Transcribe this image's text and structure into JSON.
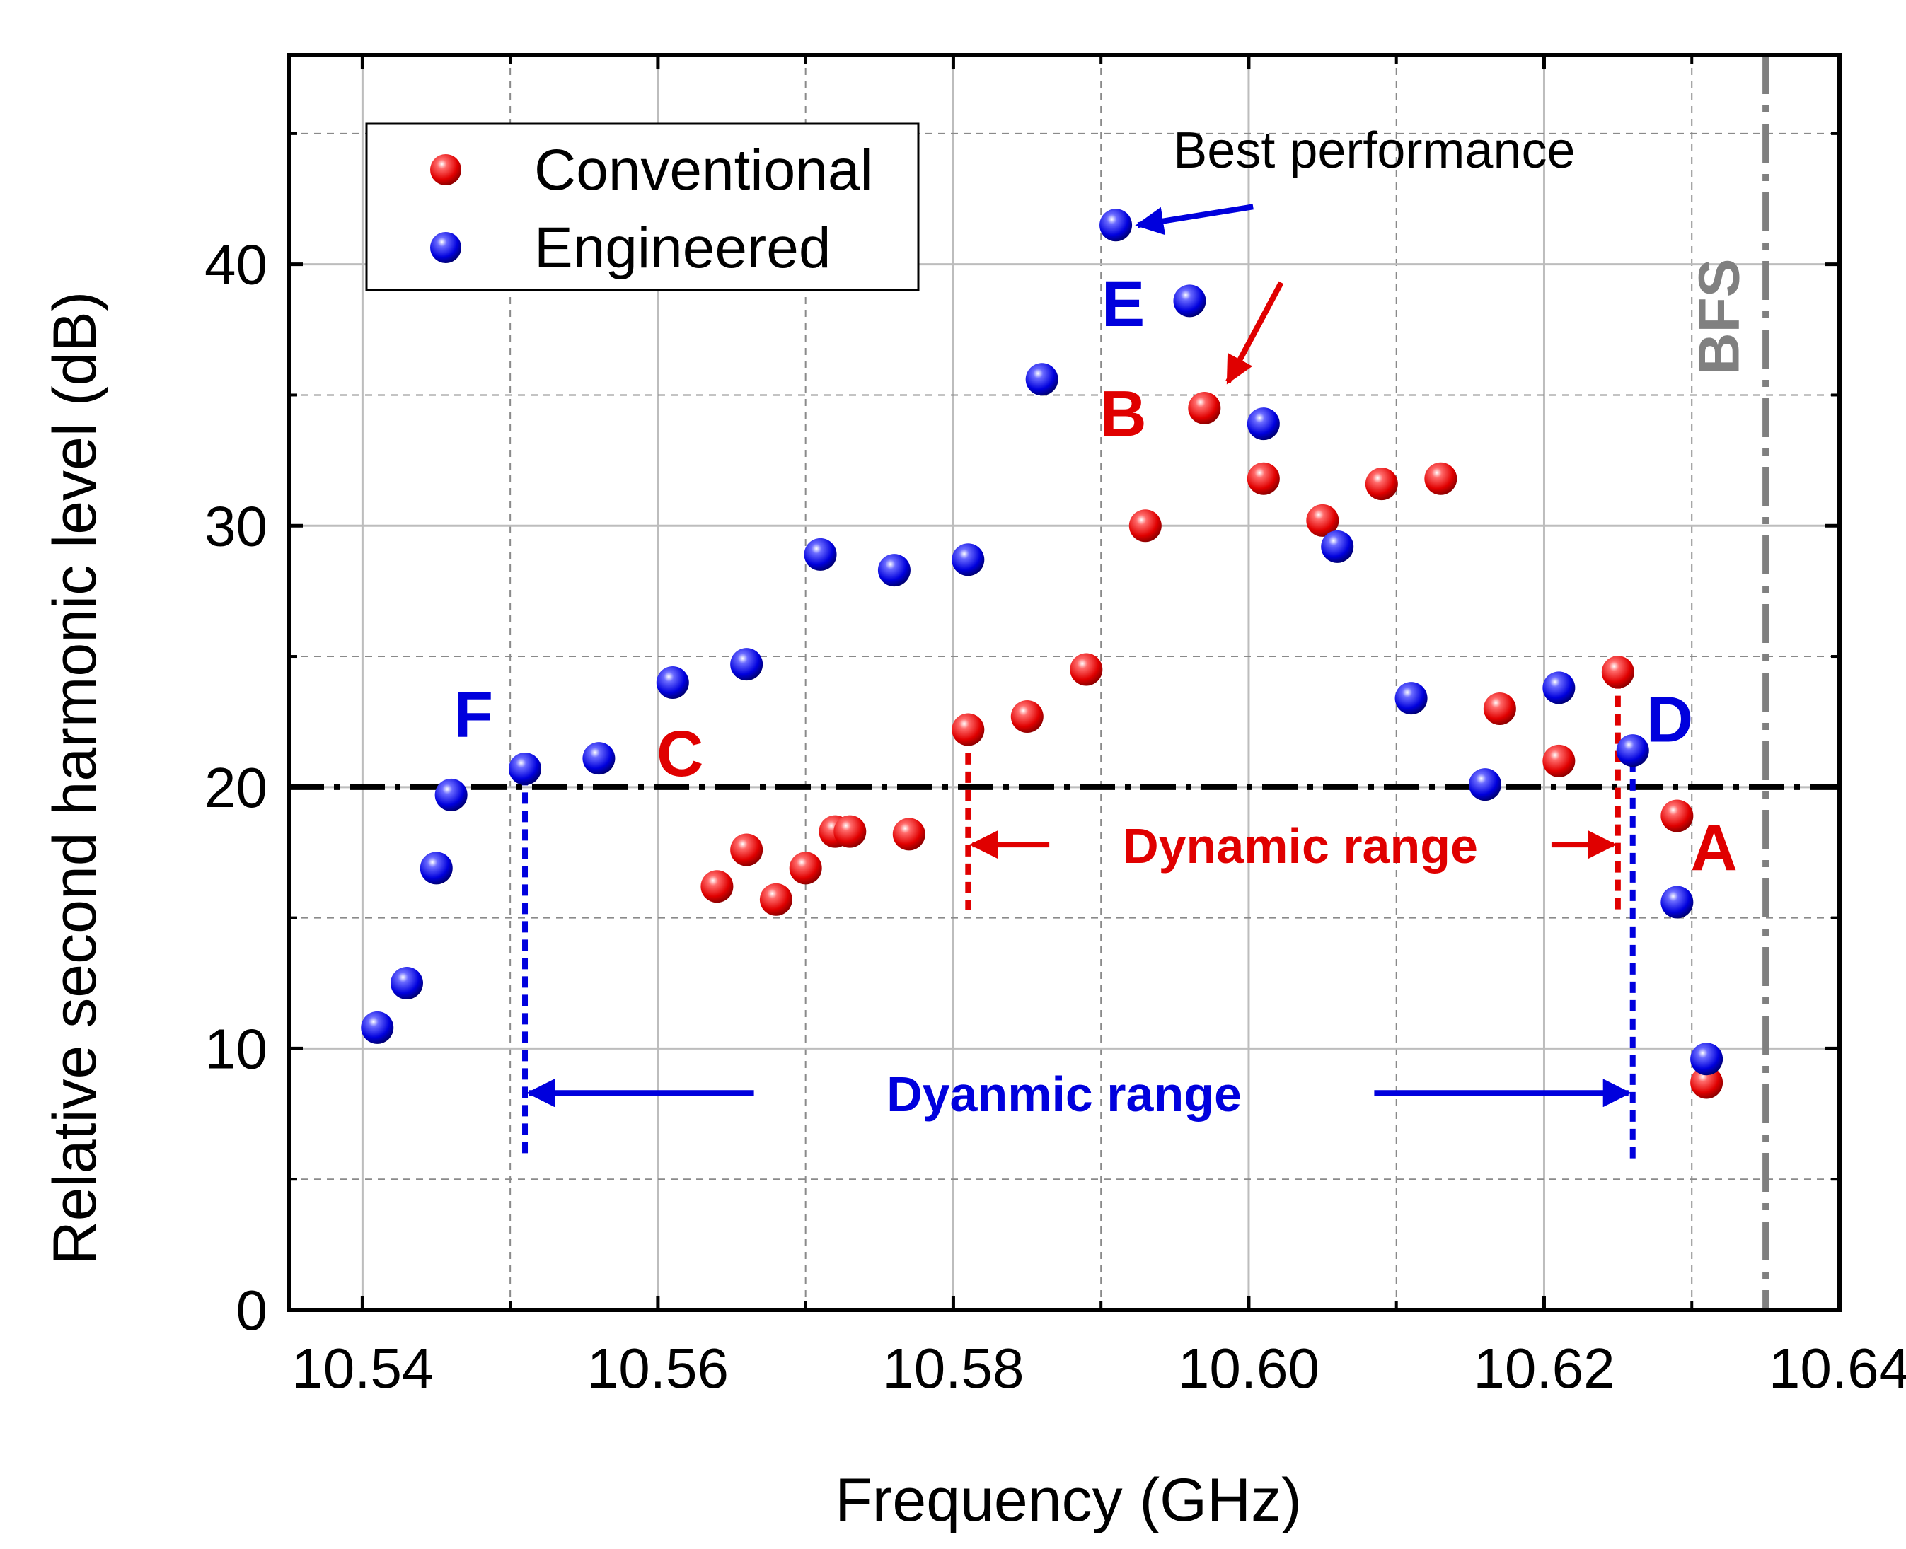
{
  "chart_data": {
    "type": "scatter",
    "xlabel": "Frequency (GHz)",
    "ylabel": "Relative second harmonic level (dB)",
    "xlim": [
      10.535,
      10.64
    ],
    "ylim": [
      0,
      48
    ],
    "x_ticks": [
      "10.54",
      "10.56",
      "10.58",
      "10.60",
      "10.62",
      "10.64"
    ],
    "y_ticks": [
      "0",
      "10",
      "20",
      "30",
      "40"
    ],
    "grid": true,
    "legend_position": "top-left",
    "colors": {
      "conventional": "#e00000",
      "engineered": "#0000dd",
      "threshold": "#000000",
      "bfs": "#808080"
    },
    "series": [
      {
        "name": "Conventional",
        "color": "#e00000",
        "points": [
          [
            10.564,
            16.2
          ],
          [
            10.566,
            17.6
          ],
          [
            10.568,
            15.7
          ],
          [
            10.57,
            16.9
          ],
          [
            10.572,
            18.3
          ],
          [
            10.573,
            18.3
          ],
          [
            10.577,
            18.2
          ],
          [
            10.581,
            22.2
          ],
          [
            10.585,
            22.7
          ],
          [
            10.589,
            24.5
          ],
          [
            10.593,
            30.0
          ],
          [
            10.597,
            34.5
          ],
          [
            10.601,
            31.8
          ],
          [
            10.605,
            30.2
          ],
          [
            10.609,
            31.6
          ],
          [
            10.613,
            31.8
          ],
          [
            10.617,
            23.0
          ],
          [
            10.621,
            21.0
          ],
          [
            10.625,
            24.4
          ],
          [
            10.629,
            18.9
          ],
          [
            10.631,
            8.7
          ]
        ]
      },
      {
        "name": "Engineered",
        "color": "#0000dd",
        "points": [
          [
            10.541,
            10.8
          ],
          [
            10.543,
            12.5
          ],
          [
            10.545,
            16.9
          ],
          [
            10.546,
            19.7
          ],
          [
            10.551,
            20.7
          ],
          [
            10.556,
            21.1
          ],
          [
            10.561,
            24.0
          ],
          [
            10.566,
            24.7
          ],
          [
            10.571,
            28.9
          ],
          [
            10.576,
            28.3
          ],
          [
            10.581,
            28.7
          ],
          [
            10.586,
            35.6
          ],
          [
            10.591,
            41.5
          ],
          [
            10.596,
            38.6
          ],
          [
            10.601,
            33.9
          ],
          [
            10.606,
            29.2
          ],
          [
            10.611,
            23.4
          ],
          [
            10.616,
            20.1
          ],
          [
            10.621,
            23.8
          ],
          [
            10.626,
            21.4
          ],
          [
            10.629,
            15.6
          ],
          [
            10.631,
            9.6
          ]
        ]
      }
    ],
    "threshold_db": 20,
    "bfs_frequency": 10.635,
    "bfs_label": "BFS",
    "point_labels": [
      {
        "text": "A",
        "color": "#e00000",
        "x": 10.6315,
        "y": 17.7
      },
      {
        "text": "B",
        "color": "#e00000",
        "x": 10.5915,
        "y": 34.3
      },
      {
        "text": "C",
        "color": "#e00000",
        "x": 10.5615,
        "y": 21.3
      },
      {
        "text": "D",
        "color": "#0000dd",
        "x": 10.6285,
        "y": 22.6
      },
      {
        "text": "E",
        "color": "#0000dd",
        "x": 10.5915,
        "y": 38.5
      },
      {
        "text": "F",
        "color": "#0000dd",
        "x": 10.5475,
        "y": 22.8
      }
    ],
    "annotations": {
      "best_performance": {
        "text": "Best performance",
        "x": 10.6085,
        "y": 44.4,
        "color": "#000000"
      },
      "dynamic_range_conventional": {
        "text": "Dynamic range",
        "x_start": 10.581,
        "x_end": 10.625,
        "y": 17.8,
        "text_x": 10.6035,
        "color": "#e00000"
      },
      "dynamic_range_engineered": {
        "text": "Dyanmic range",
        "x_start": 10.551,
        "x_end": 10.626,
        "y": 8.3,
        "text_x": 10.5875,
        "color": "#0000dd"
      }
    }
  }
}
